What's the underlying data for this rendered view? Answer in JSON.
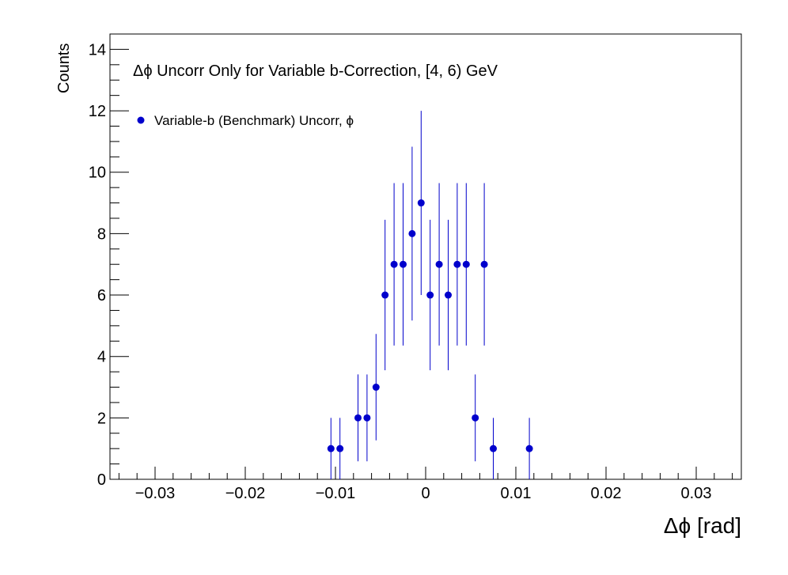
{
  "chart_data": {
    "type": "scatter",
    "title": "Δϕ Uncorr Only for Variable b-Correction, [4, 6) GeV",
    "xlabel": "Δϕ  [rad]",
    "ylabel": "Counts",
    "xlim": [
      -0.035,
      0.035
    ],
    "ylim": [
      0,
      14.5
    ],
    "x_ticks": [
      -0.03,
      -0.02,
      -0.01,
      0,
      0.01,
      0.02,
      0.03
    ],
    "x_tick_labels": [
      "−0.03",
      "−0.02",
      "−0.01",
      "0",
      "0.01",
      "0.02",
      "0.03"
    ],
    "y_ticks": [
      0,
      2,
      4,
      6,
      8,
      10,
      12,
      14
    ],
    "y_tick_labels": [
      "0",
      "2",
      "4",
      "6",
      "8",
      "10",
      "12",
      "14"
    ],
    "grid": false,
    "legend_position": "top-left",
    "marker_color": "#0000cc",
    "error_bar_color": "#0000cc",
    "series": [
      {
        "name": "Variable-b (Benchmark) Uncorr, ϕ",
        "x": [
          -0.0105,
          -0.0095,
          -0.0075,
          -0.0065,
          -0.0055,
          -0.0045,
          -0.0035,
          -0.0025,
          -0.0015,
          -0.0005,
          0.0005,
          0.0015,
          0.0025,
          0.0035,
          0.0045,
          0.0055,
          0.0065,
          0.0075,
          0.0115
        ],
        "y": [
          1,
          1,
          2,
          2,
          3,
          6,
          7,
          7,
          8,
          9,
          6,
          7,
          6,
          7,
          7,
          2,
          7,
          1,
          1
        ]
      }
    ]
  }
}
